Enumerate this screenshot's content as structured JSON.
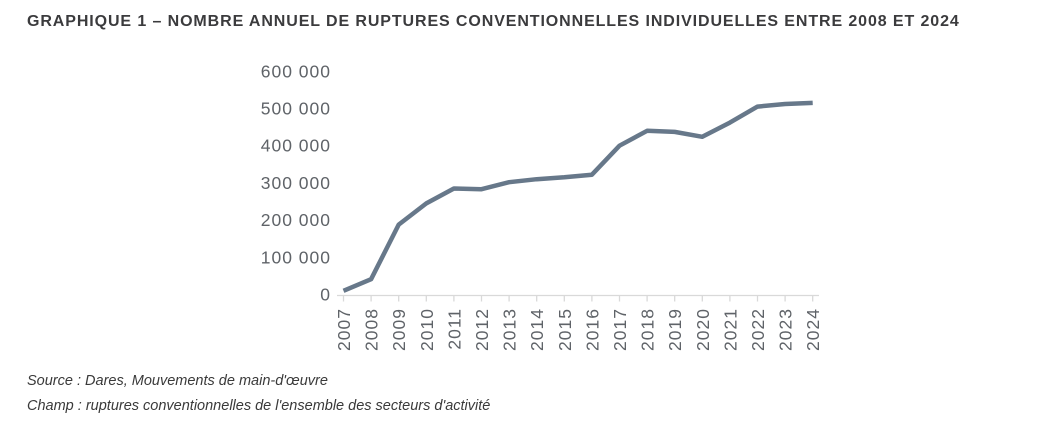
{
  "page": {
    "title": "GRAPHIQUE 1 – NOMBRE ANNUEL DE RUPTURES CONVENTIONNELLES INDIVIDUELLES ENTRE 2008 ET 2024",
    "source_line": "Source : Dares, Mouvements de main-d'œuvre",
    "scope_line": "Champ : ruptures conventionnelles de l'ensemble des secteurs d'activité"
  },
  "colors": {
    "line": "#67788a",
    "axis": "#d9d9d9",
    "tick_label": "#5f6368",
    "title_text": "#3b3b3d"
  },
  "chart_data": {
    "type": "line",
    "title": "GRAPHIQUE 1 – NOMBRE ANNUEL DE RUPTURES CONVENTIONNELLES INDIVIDUELLES ENTRE 2008 ET 2024",
    "x": [
      2007,
      2008,
      2009,
      2010,
      2011,
      2012,
      2013,
      2014,
      2015,
      2016,
      2017,
      2018,
      2019,
      2020,
      2021,
      2022,
      2023,
      2024
    ],
    "values": [
      10000,
      41000,
      188000,
      245000,
      285000,
      283000,
      302000,
      310000,
      315000,
      322000,
      400000,
      440000,
      437000,
      424000,
      462000,
      505000,
      512000,
      515000
    ],
    "xlabel": "",
    "ylabel": "",
    "ylim": [
      0,
      600000
    ],
    "y_tick_step": 100000,
    "y_tick_labels": [
      "0",
      "100 000",
      "200 000",
      "300 000",
      "400 000",
      "500 000",
      "600 000"
    ],
    "grid": false,
    "legend": false,
    "series_name": "Ruptures conventionnelles individuelles"
  }
}
